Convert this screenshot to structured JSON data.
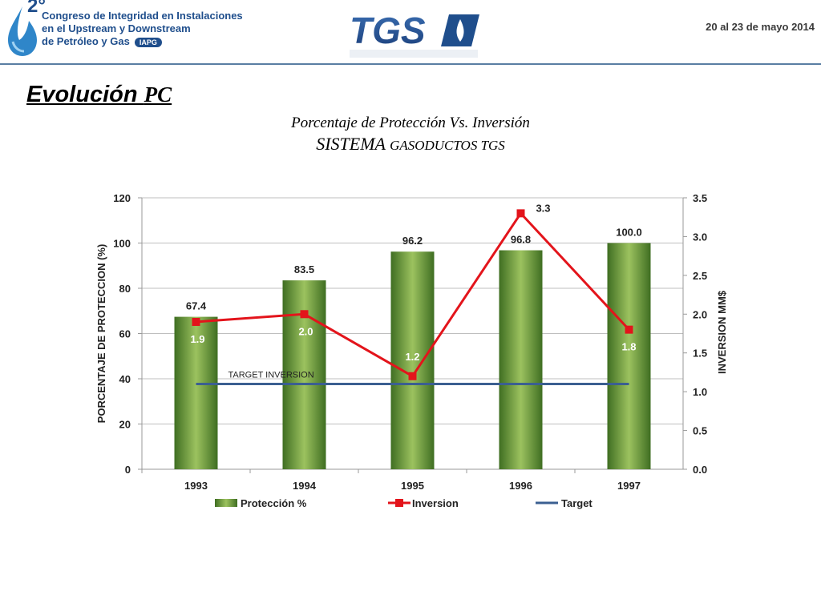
{
  "header": {
    "conf_number": "2°",
    "conf_line1": "Congreso de Integridad en Instalaciones",
    "conf_line2": "en el Upstream y Downstream",
    "conf_line3": "de Petróleo y Gas",
    "conf_badge": "IAPG",
    "company_logo": "TGS",
    "date": "20 al 23 de mayo 2014"
  },
  "slide": {
    "title_main": "Evolución ",
    "title_suffix": "PC"
  },
  "chart_data": {
    "type": "bar",
    "title": "Porcentaje de Protección Vs. Inversión",
    "subtitle_big": "SISTEMA ",
    "subtitle_small": "GASODUCTOS TGS",
    "categories": [
      "1993",
      "1994",
      "1995",
      "1996",
      "1997"
    ],
    "ylabel": "PORCENTAJE DE PROTECCION (%)",
    "y2label": "INVERSION MM$",
    "ylim": [
      0,
      120
    ],
    "y2lim": [
      0,
      3.5
    ],
    "yticks": [
      "0",
      "20",
      "40",
      "60",
      "80",
      "100",
      "120"
    ],
    "y2ticks": [
      "0.0",
      "0.5",
      "1.0",
      "1.5",
      "2.0",
      "2.5",
      "3.0",
      "3.5"
    ],
    "series": [
      {
        "name": "Protección %",
        "type": "bar",
        "axis": "left",
        "values": [
          67.4,
          83.5,
          96.2,
          96.8,
          100.0
        ],
        "labels": [
          "67.4",
          "83.5",
          "96.2",
          "96.8",
          "100.0"
        ]
      },
      {
        "name": "Inversion",
        "type": "line",
        "axis": "right",
        "values": [
          1.9,
          2.0,
          1.2,
          3.3,
          1.8
        ],
        "labels": [
          "1.9",
          "2.0",
          "1.2",
          "3.3",
          "1.8"
        ]
      },
      {
        "name": "Target",
        "type": "line",
        "axis": "right",
        "values": [
          1.1,
          1.1,
          1.1,
          1.1,
          1.1
        ]
      }
    ],
    "annotation": "TARGET INVERSION",
    "grid": true,
    "legend": "bottom",
    "colors": {
      "bar_dark": "#3f6e22",
      "bar_light": "#9cc25f",
      "inversion": "#e3141b",
      "target": "#3b5f91",
      "grid": "#bfbfbf"
    }
  }
}
